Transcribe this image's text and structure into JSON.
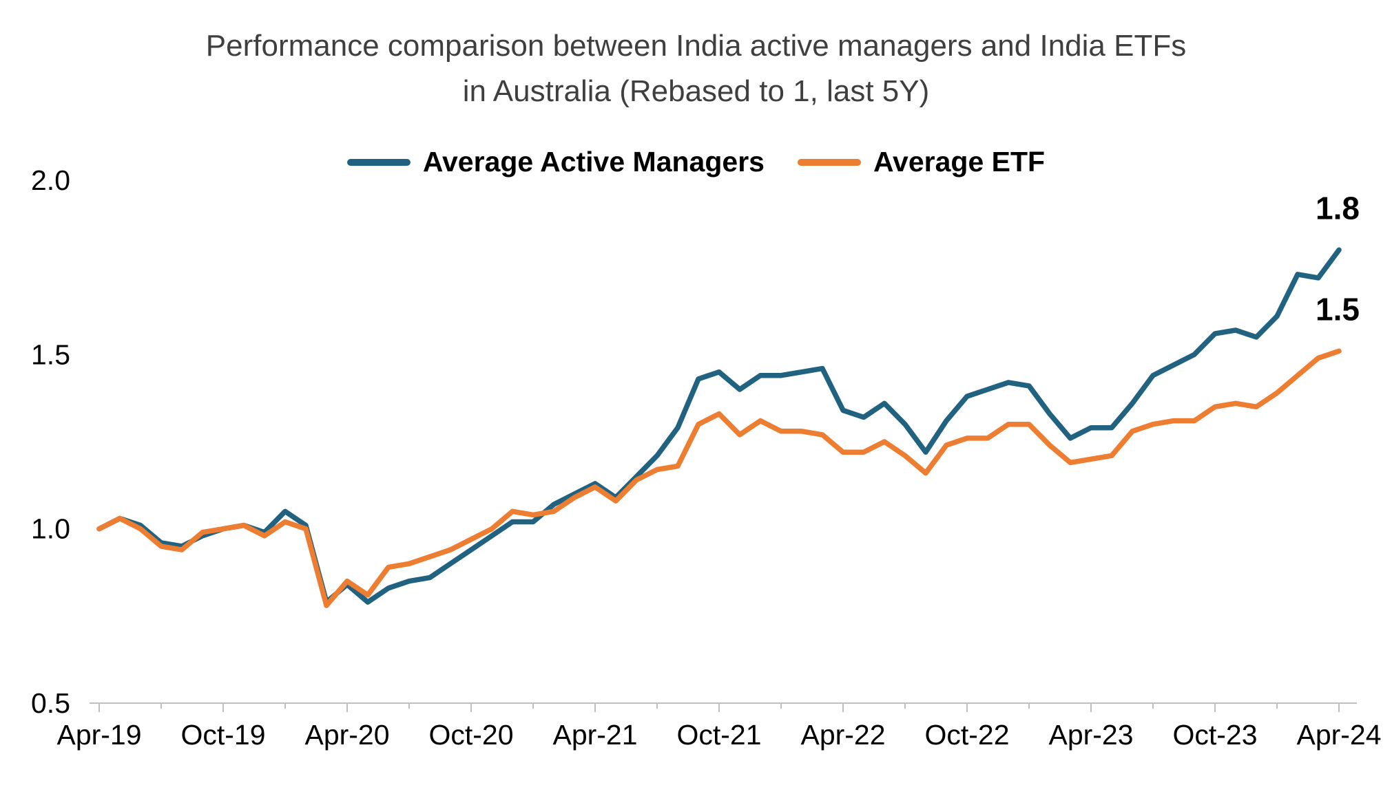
{
  "title": {
    "line1": "Performance comparison between India active managers and India ETFs",
    "line2": "in Australia (Rebased to 1, last 5Y)"
  },
  "colors": {
    "active_managers": "#20627f",
    "etf": "#ed7d31",
    "axis": "#bfbfbf",
    "title_text": "#3f3f3f",
    "tick_text": "#000000"
  },
  "chart_data": {
    "type": "line",
    "title": "Performance comparison between India active managers and India ETFs in Australia (Rebased to 1, last 5Y)",
    "xlabel": "",
    "ylabel": "",
    "ylim": [
      0.5,
      2.0
    ],
    "grid": false,
    "legend_position": "top",
    "y_tick_labels": [
      "0.5",
      "1.0",
      "1.5",
      "2.0"
    ],
    "x_tick_labels": [
      "Apr-19",
      "Oct-19",
      "Apr-20",
      "Oct-20",
      "Apr-21",
      "Oct-21",
      "Apr-22",
      "Oct-22",
      "Apr-23",
      "Oct-23",
      "Apr-24"
    ],
    "x": [
      "Apr-19",
      "May-19",
      "Jun-19",
      "Jul-19",
      "Aug-19",
      "Sep-19",
      "Oct-19",
      "Nov-19",
      "Dec-19",
      "Jan-20",
      "Feb-20",
      "Mar-20",
      "Apr-20",
      "May-20",
      "Jun-20",
      "Jul-20",
      "Aug-20",
      "Sep-20",
      "Oct-20",
      "Nov-20",
      "Dec-20",
      "Jan-21",
      "Feb-21",
      "Mar-21",
      "Apr-21",
      "May-21",
      "Jun-21",
      "Jul-21",
      "Aug-21",
      "Sep-21",
      "Oct-21",
      "Nov-21",
      "Dec-21",
      "Jan-22",
      "Feb-22",
      "Mar-22",
      "Apr-22",
      "May-22",
      "Jun-22",
      "Jul-22",
      "Aug-22",
      "Sep-22",
      "Oct-22",
      "Nov-22",
      "Dec-22",
      "Jan-23",
      "Feb-23",
      "Mar-23",
      "Apr-23",
      "May-23",
      "Jun-23",
      "Jul-23",
      "Aug-23",
      "Sep-23",
      "Oct-23",
      "Nov-23",
      "Dec-23",
      "Jan-24",
      "Feb-24",
      "Mar-24",
      "Apr-24"
    ],
    "series": [
      {
        "name": "Average Active Managers",
        "color": "#20627f",
        "end_label": "1.8",
        "values": [
          1.0,
          1.03,
          1.01,
          0.96,
          0.95,
          0.98,
          1.0,
          1.01,
          0.99,
          1.05,
          1.01,
          0.79,
          0.84,
          0.79,
          0.83,
          0.85,
          0.86,
          0.9,
          0.94,
          0.98,
          1.02,
          1.02,
          1.07,
          1.1,
          1.13,
          1.09,
          1.15,
          1.21,
          1.29,
          1.43,
          1.45,
          1.4,
          1.44,
          1.44,
          1.45,
          1.46,
          1.34,
          1.32,
          1.36,
          1.3,
          1.22,
          1.31,
          1.38,
          1.4,
          1.42,
          1.41,
          1.33,
          1.26,
          1.29,
          1.29,
          1.36,
          1.44,
          1.47,
          1.5,
          1.56,
          1.57,
          1.55,
          1.61,
          1.73,
          1.72,
          1.8
        ]
      },
      {
        "name": "Average ETF",
        "color": "#ed7d31",
        "end_label": "1.5",
        "values": [
          1.0,
          1.03,
          1.0,
          0.95,
          0.94,
          0.99,
          1.0,
          1.01,
          0.98,
          1.02,
          1.0,
          0.78,
          0.85,
          0.81,
          0.89,
          0.9,
          0.92,
          0.94,
          0.97,
          1.0,
          1.05,
          1.04,
          1.05,
          1.09,
          1.12,
          1.08,
          1.14,
          1.17,
          1.18,
          1.3,
          1.33,
          1.27,
          1.31,
          1.28,
          1.28,
          1.27,
          1.22,
          1.22,
          1.25,
          1.21,
          1.16,
          1.24,
          1.26,
          1.26,
          1.3,
          1.3,
          1.24,
          1.19,
          1.2,
          1.21,
          1.28,
          1.3,
          1.31,
          1.31,
          1.35,
          1.36,
          1.35,
          1.39,
          1.44,
          1.49,
          1.51
        ]
      }
    ]
  }
}
